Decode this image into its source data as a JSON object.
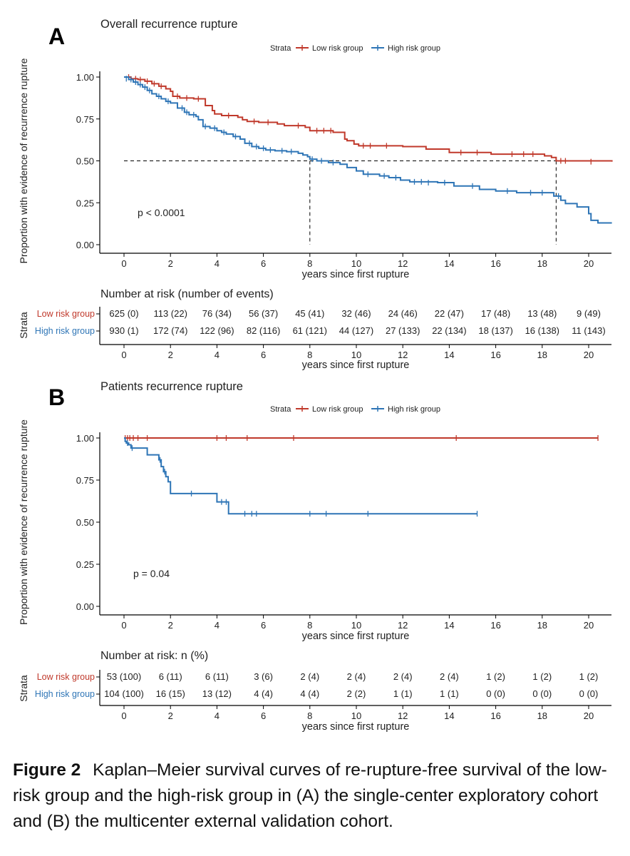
{
  "colors": {
    "low": "#c0392b",
    "high": "#2e75b6",
    "axis": "#000000"
  },
  "strata_label": "Strata",
  "chart_data": [
    {
      "type": "line",
      "panel_label": "A",
      "title": "Overall recurrence rupture",
      "xlabel": "years since first rupture",
      "ylabel": "Proportion with evidence of recurrence rupture",
      "xlim": [
        0,
        21
      ],
      "ylim": [
        0,
        1
      ],
      "xticks": [
        0,
        2,
        4,
        6,
        8,
        10,
        12,
        14,
        16,
        18,
        20
      ],
      "yticks": [
        0,
        0.25,
        0.5,
        0.75,
        1.0
      ],
      "ytick_labels": [
        "0.00",
        "0.25",
        "0.50",
        "0.75",
        "1.00"
      ],
      "pvalue": "p < 0.0001",
      "median_line": {
        "y": 0.5,
        "x_points": [
          8,
          18.6
        ]
      },
      "series": [
        {
          "name": "Low risk group",
          "key": "low",
          "steps": [
            [
              0,
              1.0
            ],
            [
              0.3,
              0.99
            ],
            [
              0.6,
              0.985
            ],
            [
              0.9,
              0.975
            ],
            [
              1.2,
              0.96
            ],
            [
              1.5,
              0.945
            ],
            [
              1.8,
              0.93
            ],
            [
              2.0,
              0.915
            ],
            [
              2.1,
              0.885
            ],
            [
              2.4,
              0.875
            ],
            [
              3.0,
              0.87
            ],
            [
              3.5,
              0.83
            ],
            [
              3.8,
              0.8
            ],
            [
              3.9,
              0.78
            ],
            [
              4.2,
              0.77
            ],
            [
              4.9,
              0.76
            ],
            [
              5.1,
              0.745
            ],
            [
              5.3,
              0.735
            ],
            [
              5.8,
              0.73
            ],
            [
              6.6,
              0.72
            ],
            [
              6.9,
              0.71
            ],
            [
              7.8,
              0.7
            ],
            [
              8.0,
              0.68
            ],
            [
              9.0,
              0.67
            ],
            [
              9.5,
              0.63
            ],
            [
              9.6,
              0.62
            ],
            [
              9.9,
              0.6
            ],
            [
              10.1,
              0.59
            ],
            [
              12.0,
              0.585
            ],
            [
              13.0,
              0.57
            ],
            [
              14.0,
              0.55
            ],
            [
              15.8,
              0.54
            ],
            [
              18.1,
              0.53
            ],
            [
              18.4,
              0.52
            ],
            [
              18.6,
              0.5
            ],
            [
              21,
              0.495
            ]
          ],
          "censors": [
            [
              0.2,
              1.0
            ],
            [
              0.5,
              0.99
            ],
            [
              0.7,
              0.985
            ],
            [
              1.0,
              0.975
            ],
            [
              1.3,
              0.96
            ],
            [
              1.6,
              0.945
            ],
            [
              2.3,
              0.885
            ],
            [
              2.7,
              0.875
            ],
            [
              3.2,
              0.87
            ],
            [
              4.5,
              0.77
            ],
            [
              5.6,
              0.735
            ],
            [
              6.2,
              0.73
            ],
            [
              7.5,
              0.71
            ],
            [
              8.3,
              0.68
            ],
            [
              8.6,
              0.68
            ],
            [
              8.9,
              0.68
            ],
            [
              10.3,
              0.59
            ],
            [
              10.6,
              0.59
            ],
            [
              11.3,
              0.59
            ],
            [
              14.5,
              0.55
            ],
            [
              15.2,
              0.55
            ],
            [
              16.7,
              0.54
            ],
            [
              17.2,
              0.54
            ],
            [
              17.6,
              0.54
            ],
            [
              18.8,
              0.5
            ],
            [
              19.0,
              0.5
            ],
            [
              20.1,
              0.495
            ]
          ]
        },
        {
          "name": "High risk group",
          "key": "high",
          "steps": [
            [
              0,
              1.0
            ],
            [
              0.2,
              0.985
            ],
            [
              0.4,
              0.97
            ],
            [
              0.6,
              0.955
            ],
            [
              0.8,
              0.94
            ],
            [
              1.0,
              0.92
            ],
            [
              1.2,
              0.9
            ],
            [
              1.4,
              0.885
            ],
            [
              1.6,
              0.87
            ],
            [
              1.8,
              0.855
            ],
            [
              2.0,
              0.845
            ],
            [
              2.3,
              0.815
            ],
            [
              2.6,
              0.79
            ],
            [
              2.8,
              0.775
            ],
            [
              3.1,
              0.765
            ],
            [
              3.2,
              0.745
            ],
            [
              3.4,
              0.705
            ],
            [
              3.7,
              0.695
            ],
            [
              4.0,
              0.68
            ],
            [
              4.2,
              0.67
            ],
            [
              4.4,
              0.66
            ],
            [
              4.7,
              0.645
            ],
            [
              5.0,
              0.63
            ],
            [
              5.2,
              0.605
            ],
            [
              5.5,
              0.585
            ],
            [
              5.8,
              0.575
            ],
            [
              6.1,
              0.565
            ],
            [
              6.5,
              0.56
            ],
            [
              7.0,
              0.555
            ],
            [
              7.5,
              0.545
            ],
            [
              7.7,
              0.535
            ],
            [
              7.9,
              0.525
            ],
            [
              8.0,
              0.51
            ],
            [
              8.3,
              0.5
            ],
            [
              8.8,
              0.49
            ],
            [
              9.3,
              0.48
            ],
            [
              9.6,
              0.46
            ],
            [
              10.0,
              0.44
            ],
            [
              10.3,
              0.42
            ],
            [
              11.0,
              0.41
            ],
            [
              11.4,
              0.4
            ],
            [
              11.9,
              0.385
            ],
            [
              12.3,
              0.375
            ],
            [
              13.5,
              0.37
            ],
            [
              14.2,
              0.35
            ],
            [
              15.3,
              0.33
            ],
            [
              16.0,
              0.32
            ],
            [
              16.9,
              0.31
            ],
            [
              18.5,
              0.29
            ],
            [
              18.8,
              0.265
            ],
            [
              19.0,
              0.245
            ],
            [
              19.5,
              0.225
            ],
            [
              20.0,
              0.185
            ],
            [
              20.1,
              0.145
            ],
            [
              20.4,
              0.13
            ],
            [
              21,
              0.13
            ]
          ],
          "censors": [
            [
              0.1,
              0.99
            ],
            [
              0.3,
              0.985
            ],
            [
              0.5,
              0.97
            ],
            [
              0.7,
              0.955
            ],
            [
              0.9,
              0.94
            ],
            [
              1.1,
              0.92
            ],
            [
              1.5,
              0.885
            ],
            [
              1.9,
              0.855
            ],
            [
              2.5,
              0.815
            ],
            [
              2.7,
              0.79
            ],
            [
              3.0,
              0.775
            ],
            [
              3.5,
              0.705
            ],
            [
              3.9,
              0.695
            ],
            [
              4.3,
              0.67
            ],
            [
              4.8,
              0.645
            ],
            [
              5.4,
              0.605
            ],
            [
              5.7,
              0.585
            ],
            [
              6.0,
              0.575
            ],
            [
              6.3,
              0.565
            ],
            [
              6.8,
              0.56
            ],
            [
              7.2,
              0.555
            ],
            [
              8.1,
              0.51
            ],
            [
              8.5,
              0.5
            ],
            [
              9.0,
              0.49
            ],
            [
              10.5,
              0.42
            ],
            [
              11.2,
              0.41
            ],
            [
              11.7,
              0.4
            ],
            [
              12.5,
              0.375
            ],
            [
              12.8,
              0.375
            ],
            [
              13.1,
              0.37
            ],
            [
              13.8,
              0.37
            ],
            [
              15.0,
              0.35
            ],
            [
              16.5,
              0.32
            ],
            [
              17.5,
              0.31
            ],
            [
              18.0,
              0.31
            ],
            [
              18.7,
              0.29
            ]
          ]
        }
      ],
      "risk_table": {
        "title": "Number at risk (number of events)",
        "low": [
          "625 (0)",
          "113 (22)",
          "76 (34)",
          "56 (37)",
          "45 (41)",
          "32 (46)",
          "24 (46)",
          "22 (47)",
          "17 (48)",
          "13 (48)",
          "9 (49)"
        ],
        "high": [
          "930 (1)",
          "172 (74)",
          "122 (96)",
          "82 (116)",
          "61 (121)",
          "44 (127)",
          "27 (133)",
          "22 (134)",
          "18 (137)",
          "16 (138)",
          "11 (143)"
        ]
      }
    },
    {
      "type": "line",
      "panel_label": "B",
      "title": "Patients recurrence rupture",
      "xlabel": "years since first rupture",
      "ylabel": "Proportion with evidence of recurrence rupture",
      "xlim": [
        0,
        21
      ],
      "ylim": [
        0,
        1
      ],
      "xticks": [
        0,
        2,
        4,
        6,
        8,
        10,
        12,
        14,
        16,
        18,
        20
      ],
      "yticks": [
        0,
        0.25,
        0.5,
        0.75,
        1.0
      ],
      "ytick_labels": [
        "0.00",
        "0.25",
        "0.50",
        "0.75",
        "1.00"
      ],
      "pvalue": "p = 0.04",
      "median_line": null,
      "series": [
        {
          "name": "Low risk group",
          "key": "low",
          "steps": [
            [
              0,
              1.0
            ],
            [
              20.4,
              1.0
            ]
          ],
          "censors": [
            [
              0.05,
              1.0
            ],
            [
              0.15,
              1.0
            ],
            [
              0.25,
              1.0
            ],
            [
              0.4,
              1.0
            ],
            [
              0.6,
              1.0
            ],
            [
              1.0,
              1.0
            ],
            [
              4.0,
              1.0
            ],
            [
              4.4,
              1.0
            ],
            [
              5.3,
              1.0
            ],
            [
              7.3,
              1.0
            ],
            [
              14.3,
              1.0
            ],
            [
              20.4,
              1.0
            ]
          ]
        },
        {
          "name": "High risk group",
          "key": "high",
          "steps": [
            [
              0,
              1.0
            ],
            [
              0.05,
              0.98
            ],
            [
              0.1,
              0.97
            ],
            [
              0.2,
              0.96
            ],
            [
              0.3,
              0.94
            ],
            [
              0.5,
              0.94
            ],
            [
              1.0,
              0.9
            ],
            [
              1.5,
              0.87
            ],
            [
              1.6,
              0.83
            ],
            [
              1.7,
              0.8
            ],
            [
              1.8,
              0.77
            ],
            [
              1.9,
              0.74
            ],
            [
              2.0,
              0.67
            ],
            [
              4.0,
              0.62
            ],
            [
              4.5,
              0.55
            ],
            [
              15.2,
              0.55
            ]
          ],
          "censors": [
            [
              0.15,
              0.97
            ],
            [
              0.35,
              0.94
            ],
            [
              1.55,
              0.87
            ],
            [
              1.75,
              0.8
            ],
            [
              2.9,
              0.67
            ],
            [
              4.2,
              0.62
            ],
            [
              4.4,
              0.62
            ],
            [
              5.2,
              0.55
            ],
            [
              5.5,
              0.55
            ],
            [
              5.7,
              0.55
            ],
            [
              8.0,
              0.55
            ],
            [
              8.7,
              0.55
            ],
            [
              10.5,
              0.55
            ],
            [
              15.2,
              0.55
            ]
          ]
        }
      ],
      "risk_table": {
        "title": "Number at risk: n (%)",
        "low": [
          "53 (100)",
          "6 (11)",
          "6 (11)",
          "3 (6)",
          "2 (4)",
          "2 (4)",
          "2 (4)",
          "2 (4)",
          "1 (2)",
          "1 (2)",
          "1 (2)"
        ],
        "high": [
          "104 (100)",
          "16 (15)",
          "13 (12)",
          "4 (4)",
          "4 (4)",
          "2 (2)",
          "1 (1)",
          "1 (1)",
          "0 (0)",
          "0 (0)",
          "0 (0)"
        ]
      }
    }
  ],
  "caption": {
    "label": "Figure 2",
    "text": "Kaplan–Meier survival curves of re-rupture-free survival of the low-risk group and the high-risk group in (A) the single-center exploratory cohort and (B) the multicenter external validation cohort."
  }
}
